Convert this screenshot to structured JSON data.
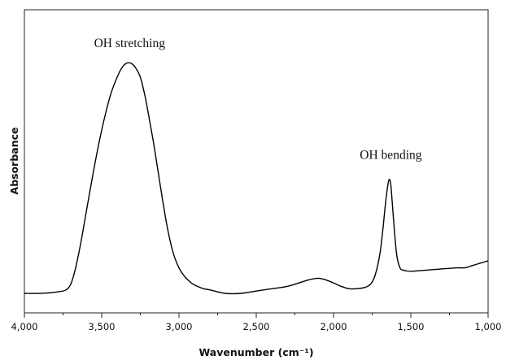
{
  "chart_data": {
    "type": "line",
    "xlabel": "Wavenumber (cm⁻¹)",
    "ylabel": "Absorbance",
    "xlim": [
      4000,
      1000
    ],
    "x_reversed": true,
    "ylim": [
      0,
      1
    ],
    "y_ticks_shown": false,
    "grid": false,
    "x_ticks": [
      {
        "value": 4000,
        "label": "4,000"
      },
      {
        "value": 3500,
        "label": "3,500"
      },
      {
        "value": 3000,
        "label": "3,000"
      },
      {
        "value": 2500,
        "label": "2,500"
      },
      {
        "value": 2000,
        "label": "2,000"
      },
      {
        "value": 1500,
        "label": "1,500"
      },
      {
        "value": 1000,
        "label": "1,000"
      }
    ],
    "annotations": [
      {
        "text": "OH stretching",
        "x": 3330,
        "y": 1.0
      },
      {
        "text": "OH bending",
        "x": 1640,
        "y": 0.52
      }
    ],
    "series": [
      {
        "color": "#000000",
        "x": [
          4000,
          3900,
          3800,
          3720,
          3680,
          3640,
          3600,
          3560,
          3520,
          3480,
          3440,
          3400,
          3370,
          3340,
          3310,
          3280,
          3250,
          3220,
          3200,
          3160,
          3120,
          3080,
          3040,
          3000,
          2960,
          2920,
          2880,
          2840,
          2800,
          2700,
          2600,
          2500,
          2400,
          2300,
          2200,
          2150,
          2100,
          2060,
          2000,
          1950,
          1900,
          1850,
          1800,
          1760,
          1730,
          1700,
          1680,
          1665,
          1650,
          1640,
          1630,
          1620,
          1605,
          1590,
          1570,
          1550,
          1500,
          1400,
          1300,
          1200,
          1150,
          1100,
          1050,
          1000
        ],
        "y": [
          0.0,
          0.0,
          0.005,
          0.02,
          0.08,
          0.2,
          0.35,
          0.5,
          0.64,
          0.76,
          0.86,
          0.93,
          0.97,
          0.99,
          0.99,
          0.97,
          0.93,
          0.85,
          0.78,
          0.63,
          0.46,
          0.3,
          0.18,
          0.11,
          0.07,
          0.045,
          0.03,
          0.02,
          0.015,
          0.0,
          0.0,
          0.01,
          0.02,
          0.03,
          0.05,
          0.06,
          0.065,
          0.06,
          0.045,
          0.03,
          0.02,
          0.02,
          0.025,
          0.04,
          0.08,
          0.17,
          0.28,
          0.38,
          0.46,
          0.49,
          0.47,
          0.39,
          0.26,
          0.16,
          0.11,
          0.1,
          0.095,
          0.1,
          0.105,
          0.11,
          0.11,
          0.12,
          0.13,
          0.14
        ]
      }
    ]
  }
}
